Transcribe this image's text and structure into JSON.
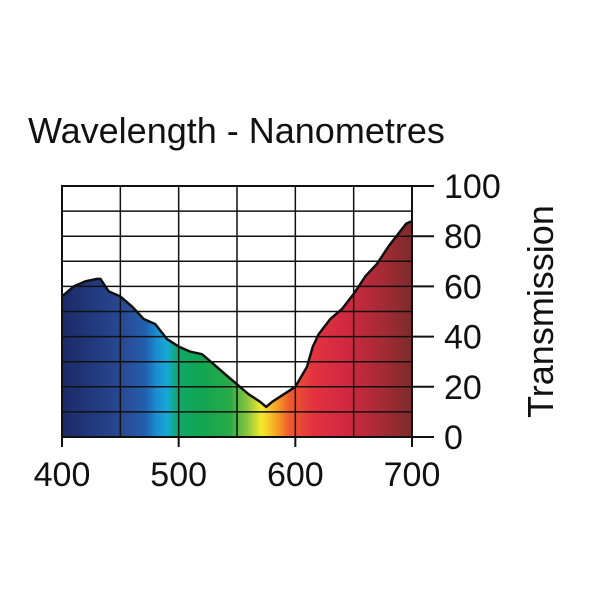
{
  "chart_data": {
    "type": "area",
    "title": "Wavelength - Nanometres",
    "xlabel": "",
    "ylabel": "Transmission",
    "xlim": [
      400,
      700
    ],
    "ylim": [
      0,
      100
    ],
    "x_ticks": [
      400,
      500,
      600,
      700
    ],
    "x_tick_labels": [
      "400",
      "500",
      "600",
      "700"
    ],
    "y_ticks": [
      0,
      20,
      40,
      60,
      80,
      100
    ],
    "y_tick_labels": [
      "0",
      "20",
      "40",
      "60",
      "80",
      "100"
    ],
    "y_axis_side": "right",
    "grid": true,
    "fill": "visible-spectrum-gradient",
    "series": [
      {
        "name": "Transmission",
        "x": [
          400,
          410,
          420,
          430,
          433,
          440,
          450,
          460,
          470,
          480,
          490,
          500,
          510,
          520,
          530,
          540,
          550,
          560,
          570,
          575,
          580,
          590,
          600,
          610,
          615,
          620,
          630,
          640,
          650,
          660,
          670,
          680,
          690,
          695,
          700
        ],
        "y": [
          56,
          60,
          62,
          63,
          63,
          58,
          56,
          52,
          47,
          45,
          39,
          36,
          34,
          33,
          29,
          25,
          21,
          17,
          14,
          12,
          14,
          17,
          20,
          28,
          36,
          41,
          47,
          51,
          57,
          64,
          69,
          76,
          82,
          85,
          86
        ]
      }
    ]
  }
}
